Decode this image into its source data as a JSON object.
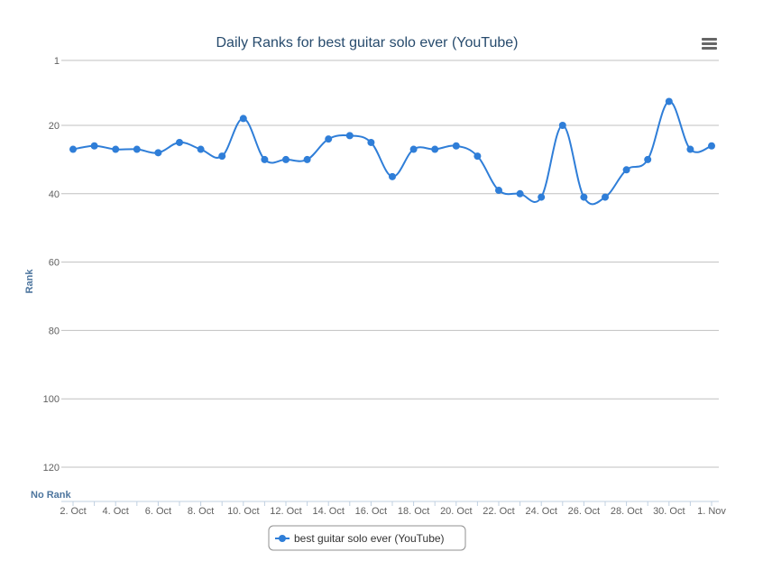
{
  "chart_data": {
    "type": "line",
    "title": "Daily Ranks for best guitar solo ever (YouTube)",
    "ylabel": "Rank",
    "y_reversed": true,
    "ylim": [
      1,
      126
    ],
    "y_ticks": [
      1,
      20,
      40,
      60,
      80,
      100,
      120
    ],
    "no_rank_label": "No Rank",
    "x": [
      "2. Oct",
      "3. Oct",
      "4. Oct",
      "5. Oct",
      "6. Oct",
      "7. Oct",
      "8. Oct",
      "9. Oct",
      "10. Oct",
      "11. Oct",
      "12. Oct",
      "13. Oct",
      "14. Oct",
      "15. Oct",
      "16. Oct",
      "17. Oct",
      "18. Oct",
      "19. Oct",
      "20. Oct",
      "21. Oct",
      "22. Oct",
      "23. Oct",
      "24. Oct",
      "25. Oct",
      "26. Oct",
      "27. Oct",
      "28. Oct",
      "29. Oct",
      "30. Oct",
      "31. Oct",
      "1. Nov"
    ],
    "x_tick_labels": [
      "2. Oct",
      "4. Oct",
      "6. Oct",
      "8. Oct",
      "10. Oct",
      "12. Oct",
      "14. Oct",
      "16. Oct",
      "18. Oct",
      "20. Oct",
      "22. Oct",
      "24. Oct",
      "26. Oct",
      "28. Oct",
      "30. Oct",
      "1. Nov"
    ],
    "series": [
      {
        "name": "best guitar solo ever (YouTube)",
        "color": "#2f7ed8",
        "values": [
          27,
          26,
          27,
          27,
          28,
          25,
          27,
          29,
          18,
          30,
          30,
          30,
          24,
          23,
          25,
          35,
          27,
          27,
          26,
          29,
          39,
          40,
          41,
          20,
          41,
          41,
          33,
          30,
          13,
          27,
          26
        ]
      }
    ],
    "grid": true,
    "legend_position": "bottom-center"
  },
  "colors": {
    "accent": "#2f7ed8",
    "grid": "#c0c0c0",
    "axis_label": "#4d759e",
    "title": "#274b6d",
    "tick": "#606060"
  },
  "menu_icon": "hamburger-menu-icon"
}
